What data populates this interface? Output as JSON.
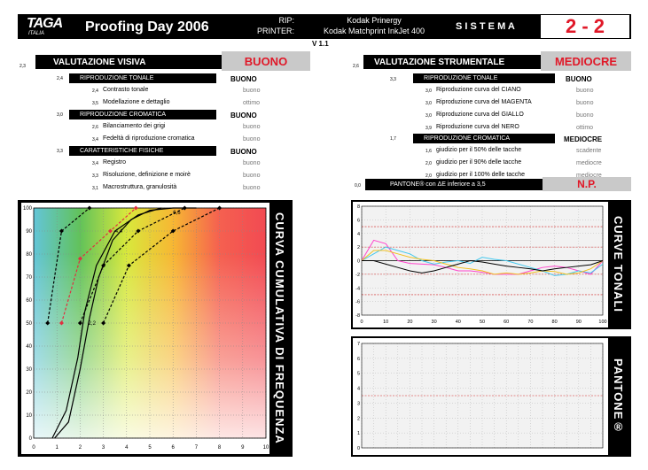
{
  "header": {
    "logo": "TAGA",
    "logo_sub": "ITALIA",
    "title": "Proofing Day 2006",
    "rip_label": "RIP:",
    "printer_label": "PRINTER:",
    "rip_value": "Kodak Prinergy",
    "printer_value": "Kodak Matchprint InkJet 400",
    "sistema_label": "S I S T E M A",
    "sistema_value": "2 - 2",
    "version": "V 1.1"
  },
  "left_section": {
    "code": "2,3",
    "title": "VALUTAZIONE VISIVA",
    "rating": "BUONO",
    "groups": [
      {
        "code": "2,4",
        "title": "RIPRODUZIONE TONALE",
        "rating": "BUONO",
        "items": [
          {
            "code": "2,4",
            "label": "Contrasto tonale",
            "value": "buono"
          },
          {
            "code": "3,5",
            "label": "Modellazione e dettaglio",
            "value": "ottimo"
          }
        ]
      },
      {
        "code": "3,0",
        "title": "RIPRODUZIONE CROMATICA",
        "rating": "BUONO",
        "items": [
          {
            "code": "2,6",
            "label": "Bilanciamento dei grigi",
            "value": "buono"
          },
          {
            "code": "3,4",
            "label": "Fedeltà di riproduzione cromatica",
            "value": "buono"
          }
        ]
      },
      {
        "code": "3,3",
        "title": "CARATTERISTICHE FISICHE",
        "rating": "BUONO",
        "items": [
          {
            "code": "3,4",
            "label": "Registro",
            "value": "buono"
          },
          {
            "code": "3,3",
            "label": "Risoluzione, definizione e moirè",
            "value": "buono"
          },
          {
            "code": "3,1",
            "label": "Macrostruttura, granulosità",
            "value": "buono"
          }
        ]
      }
    ]
  },
  "right_section": {
    "code": "2,6",
    "title": "VALUTAZIONE STRUMENTALE",
    "rating": "MEDIOCRE",
    "groups": [
      {
        "code": "3,3",
        "title": "RIPRODUZIONE TONALE",
        "rating": "BUONO",
        "items": [
          {
            "code": "3,0",
            "label": "Riproduzione curva del   CIANO",
            "value": "buono"
          },
          {
            "code": "3,0",
            "label": "Riproduzione curva del MAGENTA",
            "value": "buono"
          },
          {
            "code": "3,0",
            "label": "Riproduzione curva del  GIALLO",
            "value": "buono"
          },
          {
            "code": "3,9",
            "label": "Riproduzione curva del     NERO",
            "value": "ottimo"
          }
        ]
      },
      {
        "code": "1,7",
        "title": "RIPRODUZIONE CROMATICA",
        "rating": "MEDIOCRE",
        "items": [
          {
            "code": "1,6",
            "label": "giudizio per il   50% delle tacche",
            "value": "scadente"
          },
          {
            "code": "2,0",
            "label": "giudizio per il   90% delle tacche",
            "value": "mediocre"
          },
          {
            "code": "2,0",
            "label": "giudizio per il 100% delle tacche",
            "value": "mediocre"
          }
        ]
      }
    ],
    "pantone": {
      "code": "0,0",
      "label": "PANTONE® con ΔE inferiore a 3,5",
      "rating": "N.P."
    }
  },
  "panel_titles": {
    "cumulative": "CURVA CUMULATIVA DI FREQUENZA",
    "tonal": "CURVE TONALI",
    "pantone": "PANTONE®"
  },
  "chart_data": [
    {
      "type": "line",
      "name": "cumulative",
      "xlim": [
        0,
        10
      ],
      "ylim": [
        0,
        100
      ],
      "xticks": [
        0,
        1,
        2,
        3,
        4,
        5,
        6,
        7,
        8,
        9,
        10
      ],
      "yticks": [
        0,
        10,
        20,
        30,
        40,
        50,
        60,
        70,
        80,
        90,
        100
      ],
      "annotations": [
        {
          "text": "2,2",
          "x": 2.35,
          "y": 50
        },
        {
          "text": "4,4",
          "x": 3.5,
          "y": 90
        },
        {
          "text": "6,6",
          "x": 6.0,
          "y": 98
        }
      ],
      "series": [
        {
          "color": "#000000",
          "style": "dashed",
          "marker": "diamond",
          "points": [
            [
              0.6,
              50
            ],
            [
              1.2,
              90
            ],
            [
              2.4,
              100
            ]
          ]
        },
        {
          "color": "#e03040",
          "style": "dashed",
          "marker": "diamond",
          "points": [
            [
              1.2,
              50
            ],
            [
              2.0,
              78
            ],
            [
              3.3,
              90
            ],
            [
              4.4,
              100
            ]
          ]
        },
        {
          "color": "#000000",
          "style": "dashed",
          "marker": "diamond",
          "points": [
            [
              3.0,
              50
            ],
            [
              4.1,
              75
            ],
            [
              6.0,
              90
            ],
            [
              8.0,
              100
            ]
          ]
        },
        {
          "color": "#000000",
          "style": "dashed",
          "marker": "diamond",
          "points": [
            [
              2.0,
              50
            ],
            [
              3.0,
              75
            ],
            [
              4.5,
              90
            ],
            [
              6.5,
              100
            ]
          ]
        },
        {
          "color": "#000000",
          "style": "solid",
          "marker": "none",
          "points": [
            [
              0.9,
              0
            ],
            [
              1.5,
              7
            ],
            [
              2.0,
              30
            ],
            [
              2.4,
              52
            ],
            [
              2.8,
              70
            ],
            [
              3.4,
              86
            ],
            [
              4.2,
              95
            ],
            [
              5.0,
              99
            ],
            [
              6.0,
              100
            ],
            [
              7.0,
              100
            ]
          ]
        },
        {
          "color": "#000000",
          "style": "solid",
          "marker": "none",
          "points": [
            [
              0.8,
              0
            ],
            [
              1.4,
              12
            ],
            [
              1.9,
              35
            ],
            [
              2.2,
              55
            ],
            [
              2.7,
              75
            ],
            [
              3.5,
              90
            ],
            [
              4.5,
              97
            ],
            [
              5.5,
              100
            ]
          ]
        }
      ]
    },
    {
      "type": "line",
      "name": "tonal",
      "xlim": [
        0,
        100
      ],
      "ylim": [
        -8,
        8
      ],
      "xticks": [
        0,
        10,
        20,
        30,
        40,
        50,
        60,
        70,
        80,
        90,
        100
      ],
      "yticks": [
        -8,
        -6,
        -4,
        -2,
        0,
        2,
        4,
        6,
        8
      ],
      "reference_lines": [
        -5,
        -2,
        2,
        5
      ],
      "series": [
        {
          "color": "#ff44cc",
          "values": [
            0,
            3,
            2.5,
            0,
            -0.4,
            -0.5,
            -0.6,
            -1,
            -1.5,
            -1.5,
            -1.7,
            -2,
            -2,
            -2,
            -1.5,
            -1,
            -0.8,
            -1,
            -1.5,
            -2,
            0
          ]
        },
        {
          "color": "#44c8ee",
          "values": [
            0,
            1,
            2,
            1.5,
            1,
            0,
            -0.5,
            -0.2,
            0,
            -0.4,
            0.5,
            0.2,
            0,
            -0.5,
            -1,
            -1.5,
            -2.2,
            -2,
            -1.5,
            -1.8,
            -0.5
          ]
        },
        {
          "color": "#f0c020",
          "values": [
            0,
            1.5,
            1.5,
            1,
            0.5,
            0.2,
            0,
            -0.5,
            -1,
            -1.2,
            -1.5,
            -2,
            -1.8,
            -2,
            -1.8,
            -1.5,
            -1.6,
            -2,
            -1.8,
            -1.2,
            0
          ]
        },
        {
          "color": "#000000",
          "values": [
            0,
            0,
            -0.5,
            -1,
            -1.5,
            -1.8,
            -1.5,
            -1,
            -0.5,
            0,
            -0.2,
            -0.5,
            -0.8,
            -1,
            -1.2,
            -1.5,
            -1.2,
            -1,
            -0.8,
            -0.6,
            0
          ]
        }
      ]
    },
    {
      "type": "line",
      "name": "pantone",
      "ylim": [
        0,
        7
      ],
      "yticks": [
        0,
        1,
        2,
        3,
        4,
        5,
        6,
        7
      ],
      "reference_lines": [
        3.5
      ],
      "series": []
    }
  ]
}
